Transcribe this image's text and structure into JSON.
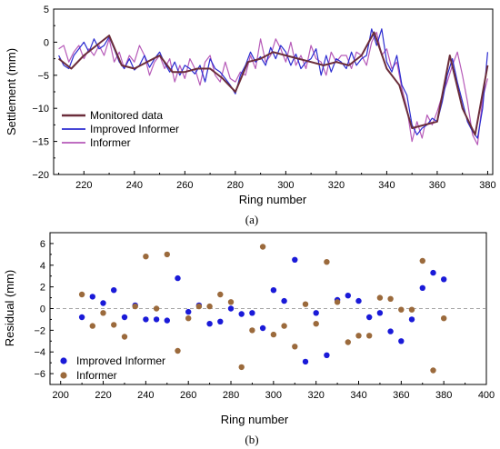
{
  "chart_data": [
    {
      "type": "line",
      "caption": "(a)",
      "xlabel": "Ring number",
      "ylabel": "Settlement (mm)",
      "xlim": [
        208,
        382
      ],
      "ylim": [
        -20,
        5
      ],
      "xticks": [
        220,
        240,
        260,
        280,
        300,
        320,
        340,
        360,
        380
      ],
      "yticks": [
        5,
        0,
        -5,
        -10,
        -15,
        -20
      ],
      "grid": false,
      "legend": "bottom-left",
      "series": [
        {
          "name": "Monitored data",
          "color": "#6b2d3a",
          "width": 2,
          "x": [
            210,
            215,
            220,
            225,
            230,
            235,
            240,
            245,
            250,
            255,
            260,
            265,
            270,
            275,
            280,
            285,
            290,
            295,
            300,
            305,
            310,
            315,
            320,
            325,
            330,
            335,
            340,
            345,
            350,
            355,
            360,
            365,
            370,
            375,
            380
          ],
          "y": [
            -2.5,
            -4.0,
            -2.0,
            -0.5,
            1.0,
            -3.5,
            -4.0,
            -3.0,
            -2.0,
            -4.5,
            -4.5,
            -4.0,
            -4.0,
            -5.5,
            -7.5,
            -3.0,
            -2.5,
            -1.5,
            -2.0,
            -2.5,
            -3.0,
            -3.5,
            -3.0,
            -3.5,
            -2.0,
            1.5,
            -4.0,
            -6.5,
            -13.0,
            -12.5,
            -12.0,
            -2.0,
            -10.0,
            -14.0,
            -3.5
          ]
        },
        {
          "name": "Improved Informer",
          "color": "#2b2bd0",
          "width": 1.2,
          "x": [
            210,
            212,
            214,
            216,
            218,
            220,
            222,
            224,
            226,
            228,
            230,
            232,
            234,
            236,
            238,
            240,
            242,
            244,
            246,
            248,
            250,
            252,
            254,
            256,
            258,
            260,
            262,
            264,
            266,
            268,
            270,
            272,
            274,
            276,
            278,
            280,
            282,
            284,
            286,
            288,
            290,
            292,
            294,
            296,
            298,
            300,
            302,
            304,
            306,
            308,
            310,
            312,
            314,
            316,
            318,
            320,
            322,
            324,
            326,
            328,
            330,
            332,
            334,
            336,
            338,
            340,
            342,
            344,
            346,
            348,
            350,
            352,
            354,
            356,
            358,
            360,
            362,
            364,
            366,
            368,
            370,
            372,
            374,
            376,
            378,
            380
          ],
          "y": [
            -2.0,
            -3.5,
            -4.0,
            -2.0,
            -1.0,
            0.0,
            -1.5,
            0.5,
            -1.0,
            -0.5,
            0.8,
            -1.0,
            -3.0,
            -4.0,
            -2.5,
            -4.2,
            -3.5,
            -2.0,
            -3.8,
            -2.5,
            -1.5,
            -3.2,
            -4.5,
            -3.0,
            -5.0,
            -3.5,
            -4.0,
            -4.8,
            -3.5,
            -6.0,
            -2.5,
            -4.0,
            -4.5,
            -5.5,
            -6.5,
            -7.8,
            -5.0,
            -3.5,
            -1.5,
            -3.0,
            -2.2,
            -3.5,
            -0.8,
            -2.5,
            -0.5,
            -1.5,
            -3.5,
            -1.8,
            -4.0,
            -3.0,
            -2.5,
            -1.0,
            -5.0,
            -2.0,
            -4.5,
            -2.5,
            -3.0,
            -4.0,
            -1.5,
            -3.5,
            -2.5,
            -2.0,
            2.0,
            -0.5,
            2.0,
            -3.0,
            -4.5,
            -2.0,
            -6.5,
            -8.0,
            -12.5,
            -14.0,
            -13.0,
            -12.5,
            -11.5,
            -12.0,
            -9.0,
            -5.0,
            -2.5,
            -6.0,
            -9.0,
            -12.0,
            -13.5,
            -14.5,
            -10.0,
            -1.5
          ]
        },
        {
          "name": "Informer",
          "color": "#b65ab8",
          "width": 1.2,
          "x": [
            210,
            212,
            214,
            216,
            218,
            220,
            222,
            224,
            226,
            228,
            230,
            232,
            234,
            236,
            238,
            240,
            242,
            244,
            246,
            248,
            250,
            252,
            254,
            256,
            258,
            260,
            262,
            264,
            266,
            268,
            270,
            272,
            274,
            276,
            278,
            280,
            282,
            284,
            286,
            288,
            290,
            292,
            294,
            296,
            298,
            300,
            302,
            304,
            306,
            308,
            310,
            312,
            314,
            316,
            318,
            320,
            322,
            324,
            326,
            328,
            330,
            332,
            334,
            336,
            338,
            340,
            342,
            344,
            346,
            348,
            350,
            352,
            354,
            356,
            358,
            360,
            362,
            364,
            366,
            368,
            370,
            372,
            374,
            376,
            378,
            380
          ],
          "y": [
            -1.0,
            -0.5,
            -3.0,
            -1.5,
            -0.5,
            -2.5,
            -1.0,
            -2.0,
            -0.5,
            -2.0,
            0.5,
            -3.0,
            -1.5,
            -4.0,
            -2.0,
            -3.0,
            -0.5,
            -2.0,
            -5.0,
            -3.0,
            -2.0,
            -4.0,
            -2.5,
            -6.0,
            -3.5,
            -5.5,
            -2.5,
            -4.0,
            -6.5,
            -3.0,
            -2.0,
            -5.0,
            -6.0,
            -3.0,
            -5.5,
            -6.0,
            -4.5,
            -5.0,
            -2.0,
            -4.0,
            0.5,
            -3.0,
            -2.0,
            0.5,
            -1.0,
            -3.0,
            0.0,
            -3.5,
            -2.0,
            -4.0,
            -0.5,
            -2.5,
            -3.0,
            -5.0,
            -1.5,
            -3.0,
            -2.0,
            -2.0,
            -4.0,
            -1.5,
            -2.0,
            -3.5,
            0.0,
            1.5,
            -2.0,
            -1.0,
            -4.0,
            -3.0,
            -7.0,
            -10.0,
            -15.0,
            -12.0,
            -14.5,
            -11.0,
            -12.5,
            -10.5,
            -8.0,
            -6.0,
            -3.5,
            -1.5,
            -5.0,
            -9.0,
            -14.0,
            -15.5,
            -8.5,
            -5.5
          ]
        }
      ]
    },
    {
      "type": "scatter",
      "caption": "(b)",
      "xlabel": "Ring number",
      "ylabel": "Residual (mm)",
      "xlim": [
        195,
        400
      ],
      "ylim": [
        -7,
        7
      ],
      "xticks": [
        200,
        220,
        240,
        260,
        280,
        300,
        320,
        340,
        360,
        380,
        400
      ],
      "yticks": [
        6,
        4,
        2,
        0,
        -2,
        -4,
        -6
      ],
      "reference_line": 0,
      "grid": false,
      "legend": "bottom-left",
      "series": [
        {
          "name": "Improved Informer",
          "color": "#1a1ad8",
          "x": [
            210,
            215,
            220,
            225,
            230,
            235,
            240,
            245,
            250,
            255,
            260,
            265,
            270,
            275,
            280,
            285,
            290,
            295,
            300,
            305,
            310,
            315,
            320,
            325,
            330,
            335,
            340,
            345,
            350,
            355,
            360,
            365,
            370,
            375,
            380
          ],
          "y": [
            -0.8,
            1.1,
            0.5,
            1.7,
            -0.8,
            0.3,
            -1.0,
            -1.0,
            -1.1,
            2.8,
            -0.3,
            0.3,
            -1.4,
            -1.2,
            0.0,
            -0.5,
            -0.4,
            -1.8,
            1.7,
            0.7,
            4.5,
            -4.9,
            -0.4,
            -4.3,
            0.8,
            1.2,
            0.7,
            -0.8,
            -0.4,
            -2.1,
            -3.0,
            -1.0,
            1.9,
            3.3,
            2.7
          ]
        },
        {
          "name": "Informer",
          "color": "#9b6a3c",
          "x": [
            210,
            215,
            220,
            225,
            230,
            235,
            240,
            245,
            250,
            255,
            260,
            265,
            270,
            275,
            280,
            285,
            290,
            295,
            300,
            305,
            310,
            315,
            320,
            325,
            330,
            335,
            340,
            345,
            350,
            355,
            360,
            365,
            370,
            375,
            380
          ],
          "y": [
            1.3,
            -1.6,
            -0.4,
            -1.5,
            -2.6,
            0.2,
            4.8,
            0.0,
            5.0,
            -3.9,
            -0.9,
            0.2,
            0.2,
            1.3,
            0.6,
            -5.4,
            -2.0,
            5.7,
            -2.4,
            -1.6,
            -3.5,
            0.4,
            -1.4,
            4.3,
            0.6,
            -3.1,
            -2.5,
            -2.5,
            1.0,
            0.9,
            -0.1,
            -0.1,
            4.4,
            -5.7,
            -0.9
          ]
        }
      ]
    }
  ]
}
